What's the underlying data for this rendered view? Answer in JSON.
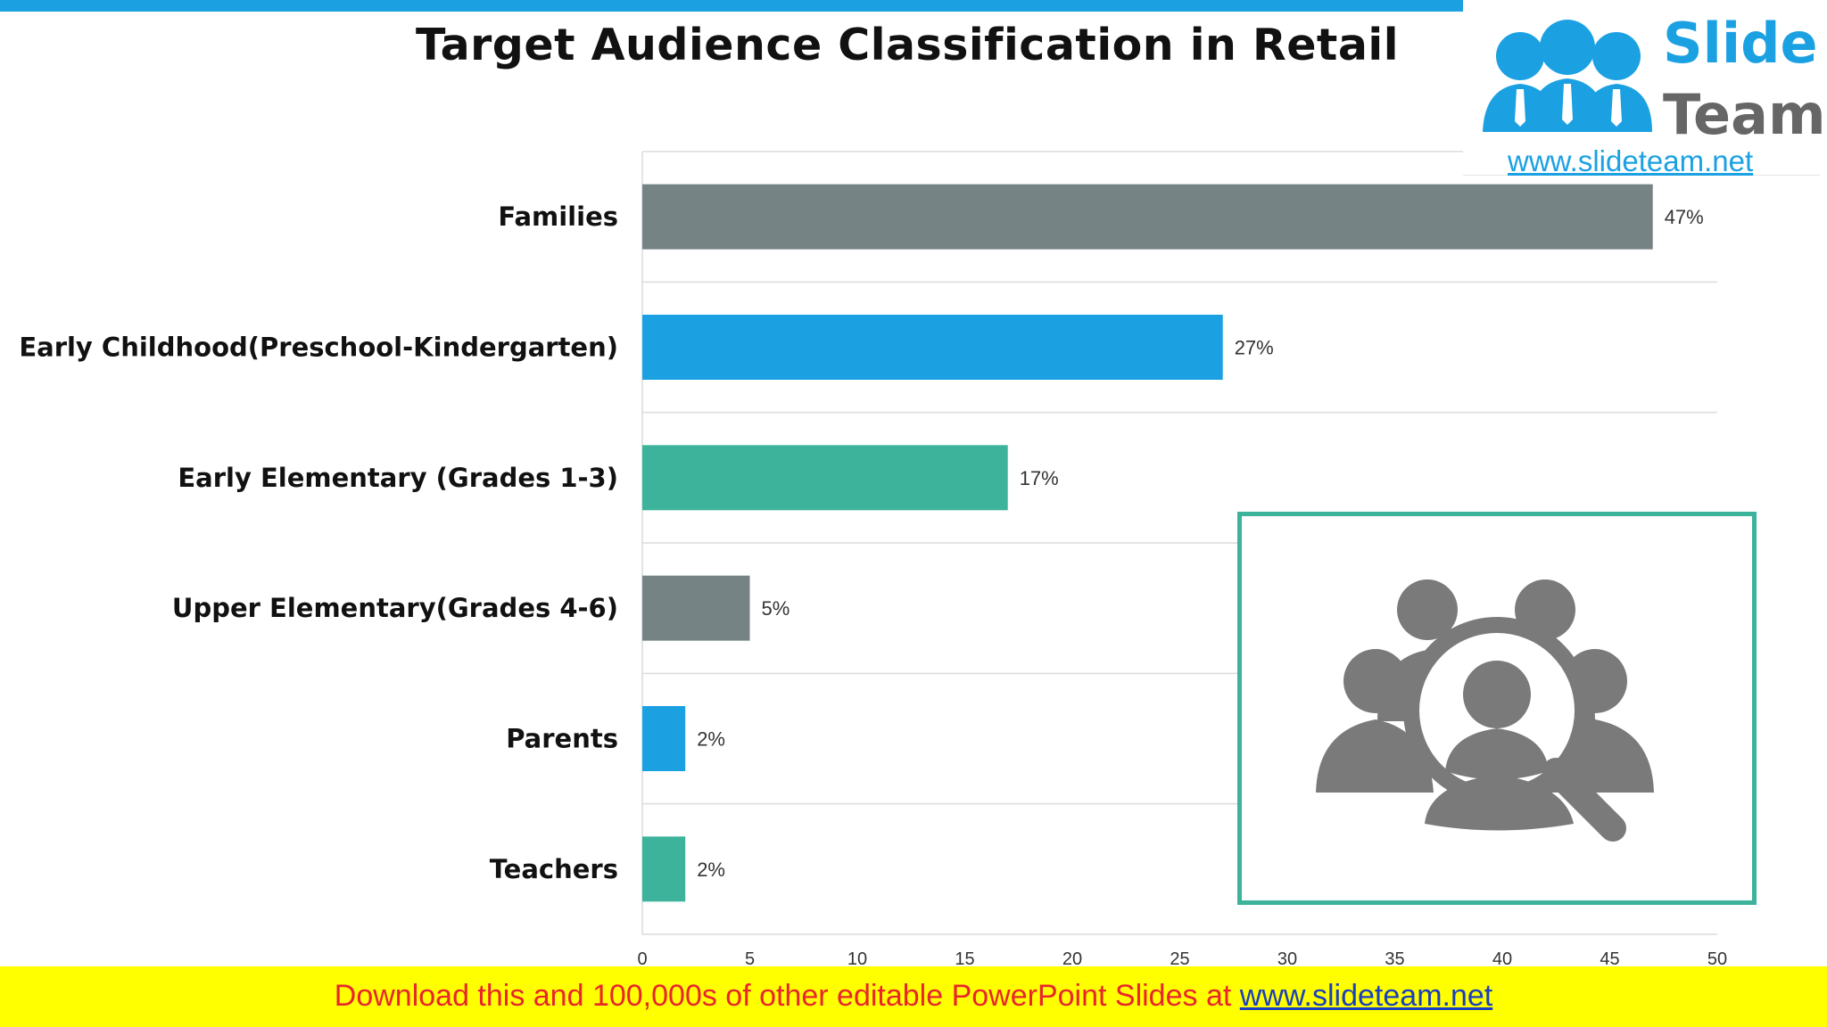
{
  "title": "Target Audience Classification in Retail",
  "logo": {
    "word1": "Slide",
    "word2": "Team",
    "url": "www.slideteam.net",
    "colors": {
      "blue": "#1ba1e2",
      "grey": "#666666"
    }
  },
  "footer": {
    "text": "Download this and 100,000s of other editable PowerPoint Slides at ",
    "link": "www.slideteam.net"
  },
  "icon": "audience-search-icon",
  "chart_data": {
    "type": "bar",
    "orientation": "horizontal",
    "categories": [
      "Families",
      "Early Childhood(Preschool-Kindergarten)",
      "Early Elementary (Grades 1-3)",
      "Upper Elementary(Grades 4-6)",
      "Parents",
      "Teachers"
    ],
    "values": [
      47,
      27,
      17,
      5,
      2,
      2
    ],
    "data_labels": [
      "47%",
      "27%",
      "17%",
      "5%",
      "2%",
      "2%"
    ],
    "colors": [
      "#758385",
      "#1ba1e2",
      "#3cb39a",
      "#758385",
      "#1ba1e2",
      "#3cb39a"
    ],
    "xlim": [
      0,
      50
    ],
    "xticks": [
      0,
      5,
      10,
      15,
      20,
      25,
      30,
      35,
      40,
      45,
      50
    ],
    "grid": true,
    "legend": "none"
  }
}
